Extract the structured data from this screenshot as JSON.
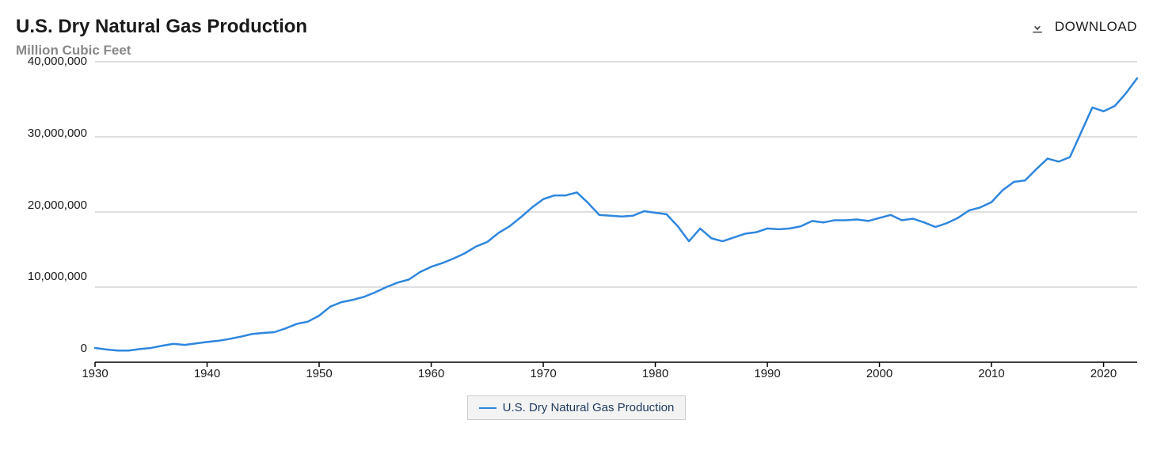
{
  "header": {
    "title": "U.S. Dry Natural Gas Production",
    "download_label": "DOWNLOAD"
  },
  "chart": {
    "type": "line",
    "subtitle": "Million Cubic Feet",
    "background_color": "#ffffff",
    "grid_color": "#bfbfbf",
    "axis_color": "#000000",
    "xlim": [
      1930,
      2023
    ],
    "ylim": [
      0,
      40000000
    ],
    "x_ticks": [
      1930,
      1940,
      1950,
      1960,
      1970,
      1980,
      1990,
      2000,
      2010,
      2020
    ],
    "y_ticks": [
      0,
      10000000,
      20000000,
      30000000,
      40000000
    ],
    "y_tick_labels": [
      "0",
      "10,000,000",
      "20,000,000",
      "30,000,000",
      "40,000,000"
    ],
    "tick_length": 6,
    "series": {
      "label": "U.S. Dry Natural Gas Production",
      "color": "#2e86de",
      "line_width": 2.5,
      "years": [
        1930,
        1931,
        1932,
        1933,
        1934,
        1935,
        1936,
        1937,
        1938,
        1939,
        1940,
        1941,
        1942,
        1943,
        1944,
        1945,
        1946,
        1947,
        1948,
        1949,
        1950,
        1951,
        1952,
        1953,
        1954,
        1955,
        1956,
        1957,
        1958,
        1959,
        1960,
        1961,
        1962,
        1963,
        1964,
        1965,
        1966,
        1967,
        1968,
        1969,
        1970,
        1971,
        1972,
        1973,
        1974,
        1975,
        1976,
        1977,
        1978,
        1979,
        1980,
        1981,
        1982,
        1983,
        1984,
        1985,
        1986,
        1987,
        1988,
        1989,
        1990,
        1991,
        1992,
        1993,
        1994,
        1995,
        1996,
        1997,
        1998,
        1999,
        2000,
        2001,
        2002,
        2003,
        2004,
        2005,
        2006,
        2007,
        2008,
        2009,
        2010,
        2011,
        2012,
        2013,
        2014,
        2015,
        2016,
        2017,
        2018,
        2019,
        2020,
        2021,
        2022,
        2023
      ],
      "values": [
        1900000,
        1700000,
        1550000,
        1550000,
        1750000,
        1900000,
        2200000,
        2450000,
        2300000,
        2500000,
        2700000,
        2850000,
        3100000,
        3400000,
        3750000,
        3900000,
        4000000,
        4500000,
        5100000,
        5400000,
        6200000,
        7400000,
        8000000,
        8300000,
        8700000,
        9300000,
        10000000,
        10600000,
        11000000,
        12000000,
        12700000,
        13200000,
        13800000,
        14500000,
        15400000,
        16000000,
        17200000,
        18100000,
        19300000,
        20600000,
        21700000,
        22200000,
        22200000,
        22600000,
        21200000,
        19600000,
        19500000,
        19400000,
        19500000,
        20100000,
        19900000,
        19700000,
        18100000,
        16100000,
        17800000,
        16500000,
        16100000,
        16600000,
        17100000,
        17300000,
        17800000,
        17700000,
        17800000,
        18100000,
        18800000,
        18600000,
        18900000,
        18900000,
        19000000,
        18800000,
        19200000,
        19600000,
        18900000,
        19100000,
        18600000,
        18000000,
        18500000,
        19200000,
        20200000,
        20600000,
        21300000,
        22900000,
        24000000,
        24200000,
        25700000,
        27100000,
        26700000,
        27300000,
        30600000,
        33900000,
        33400000,
        34100000,
        35800000,
        37800000
      ]
    },
    "legend": {
      "position": "bottom-center",
      "text_color": "#1d3a5f",
      "border_color": "#cccccc",
      "bg_color": "#f3f3f3"
    },
    "title_fontsize": 24,
    "subtitle_fontsize": 17,
    "tick_fontsize": 15
  }
}
